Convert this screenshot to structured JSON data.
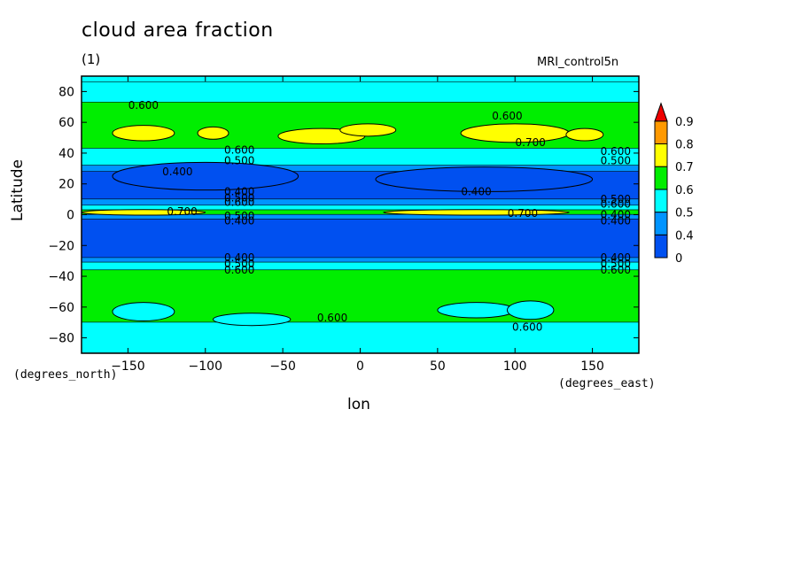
{
  "chart_data": {
    "type": "contour",
    "title": "cloud area fraction",
    "subtitle": "(1)",
    "run_name": "MRI_control5n",
    "xlabel": "lon",
    "ylabel": "Latitude",
    "x_units": "(degrees_east)",
    "y_units": "(degrees_north)",
    "xlim": [
      -180,
      180
    ],
    "ylim": [
      -90,
      90
    ],
    "x_ticks": [
      -150,
      -100,
      -50,
      0,
      50,
      100,
      150
    ],
    "y_ticks": [
      -80,
      -60,
      -40,
      -20,
      0,
      20,
      40,
      60,
      80
    ],
    "colorbar": {
      "levels": [
        0,
        0.4,
        0.5,
        0.6,
        0.7,
        0.8,
        0.9
      ],
      "labels": [
        "0",
        "0.4",
        "0.5",
        "0.6",
        "0.7",
        "0.8",
        "0.9"
      ],
      "colors": [
        "#0050f0",
        "#0094ff",
        "#00ffff",
        "#00ee00",
        "#ffff00",
        "#ff9900",
        "#ee0000"
      ],
      "extend": "max"
    },
    "bands": [
      {
        "lat_from": 90,
        "lat_to": 86,
        "value": 0.55
      },
      {
        "lat_from": 86,
        "lat_to": 73,
        "value": 0.55
      },
      {
        "lat_from": 73,
        "lat_to": 43,
        "value": 0.65
      },
      {
        "lat_from": 43,
        "lat_to": 32,
        "value": 0.55
      },
      {
        "lat_from": 32,
        "lat_to": 28,
        "value": 0.45
      },
      {
        "lat_from": 28,
        "lat_to": 10,
        "value": 0.35
      },
      {
        "lat_from": 10,
        "lat_to": 6,
        "value": 0.45
      },
      {
        "lat_from": 6,
        "lat_to": 3,
        "value": 0.55
      },
      {
        "lat_from": 3,
        "lat_to": 0,
        "value": 0.65
      },
      {
        "lat_from": 0,
        "lat_to": -3,
        "value": 0.45
      },
      {
        "lat_from": -3,
        "lat_to": -28,
        "value": 0.35
      },
      {
        "lat_from": -28,
        "lat_to": -31,
        "value": 0.45
      },
      {
        "lat_from": -31,
        "lat_to": -36,
        "value": 0.55
      },
      {
        "lat_from": -36,
        "lat_to": -70,
        "value": 0.65
      },
      {
        "lat_from": -70,
        "lat_to": -90,
        "value": 0.55
      }
    ],
    "patches": [
      {
        "lon": -140,
        "lat": 53,
        "dlon": 20,
        "dlat": 5,
        "value": 0.75
      },
      {
        "lon": -95,
        "lat": 53,
        "dlon": 10,
        "dlat": 4,
        "value": 0.75
      },
      {
        "lon": -25,
        "lat": 51,
        "dlon": 28,
        "dlat": 5,
        "value": 0.75
      },
      {
        "lon": 5,
        "lat": 55,
        "dlon": 18,
        "dlat": 4,
        "value": 0.75
      },
      {
        "lon": 100,
        "lat": 53,
        "dlon": 35,
        "dlat": 6,
        "value": 0.75
      },
      {
        "lon": 145,
        "lat": 52,
        "dlon": 12,
        "dlat": 4,
        "value": 0.75
      },
      {
        "lon": -140,
        "lat": 1.5,
        "dlon": 40,
        "dlat": 1.8,
        "value": 0.75
      },
      {
        "lon": 75,
        "lat": 1.5,
        "dlon": 60,
        "dlat": 1.8,
        "value": 0.75
      },
      {
        "lon": -140,
        "lat": -63,
        "dlon": 20,
        "dlat": 6,
        "value": 0.55
      },
      {
        "lon": -70,
        "lat": -68,
        "dlon": 25,
        "dlat": 4,
        "value": 0.55
      },
      {
        "lon": 75,
        "lat": -62,
        "dlon": 25,
        "dlat": 5,
        "value": 0.55
      },
      {
        "lon": 110,
        "lat": -62,
        "dlon": 15,
        "dlat": 6,
        "value": 0.55
      },
      {
        "lon": -100,
        "lat": 25,
        "dlon": 60,
        "dlat": 9,
        "value": 0.35
      },
      {
        "lon": 80,
        "lat": 23,
        "dlon": 70,
        "dlat": 8,
        "value": 0.35
      }
    ],
    "contour_labels": [
      {
        "text": "0.600",
        "lon": -140,
        "lat": 71
      },
      {
        "text": "0.600",
        "lon": 95,
        "lat": 64
      },
      {
        "text": "0.700",
        "lon": 110,
        "lat": 47
      },
      {
        "text": "0.600",
        "lon": -78,
        "lat": 42
      },
      {
        "text": "0.500",
        "lon": -78,
        "lat": 35
      },
      {
        "text": "0.400",
        "lon": -118,
        "lat": 28
      },
      {
        "text": "0.600",
        "lon": 165,
        "lat": 41
      },
      {
        "text": "0.500",
        "lon": 165,
        "lat": 35
      },
      {
        "text": "0.400",
        "lon": -78,
        "lat": 15
      },
      {
        "text": "0.500",
        "lon": -78,
        "lat": 11
      },
      {
        "text": "0.600",
        "lon": -78,
        "lat": 8
      },
      {
        "text": "0.400",
        "lon": 75,
        "lat": 15
      },
      {
        "text": "0.500",
        "lon": 165,
        "lat": 10
      },
      {
        "text": "0.600",
        "lon": 165,
        "lat": 7
      },
      {
        "text": "0.700",
        "lon": -115,
        "lat": 2
      },
      {
        "text": "0.700",
        "lon": 105,
        "lat": 1
      },
      {
        "text": "0.500",
        "lon": -78,
        "lat": -1
      },
      {
        "text": "0.400",
        "lon": -78,
        "lat": -4
      },
      {
        "text": "0.400",
        "lon": 165,
        "lat": 0
      },
      {
        "text": "0.400",
        "lon": 165,
        "lat": -4
      },
      {
        "text": "0.400",
        "lon": -78,
        "lat": -28
      },
      {
        "text": "0.500",
        "lon": -78,
        "lat": -32
      },
      {
        "text": "0.600",
        "lon": -78,
        "lat": -36
      },
      {
        "text": "0.400",
        "lon": 165,
        "lat": -28
      },
      {
        "text": "0.500",
        "lon": 165,
        "lat": -32
      },
      {
        "text": "0.600",
        "lon": 165,
        "lat": -36
      },
      {
        "text": "0.600",
        "lon": -18,
        "lat": -67
      },
      {
        "text": "0.600",
        "lon": 108,
        "lat": -73
      }
    ]
  }
}
